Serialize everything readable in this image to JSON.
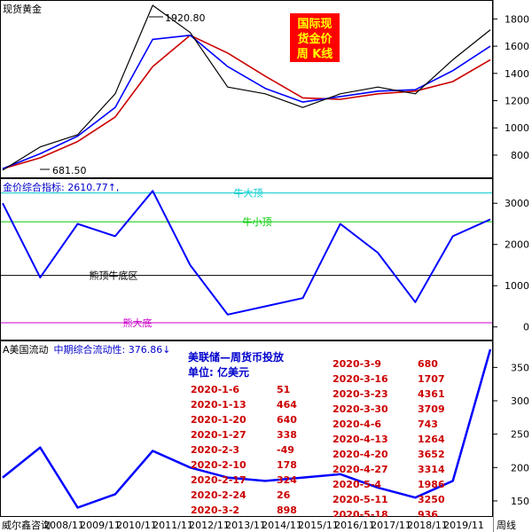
{
  "panels": {
    "top_title": "现货黄金",
    "mid_title_prefix": "金价综合指标: ",
    "mid_value": "2610.77↑,",
    "bot_title_prefix": "A美国流动",
    "bot_sub_label": "中期综合流动性: ",
    "bot_value": "376.86↓"
  },
  "colors": {
    "price": "#000000",
    "ma_blue": "#0000ff",
    "ma_red": "#cc0000",
    "indicator": "#0000ff",
    "level_cyan": "#00cccc",
    "level_green": "#00cc00",
    "level_black": "#000000",
    "level_magenta": "#cc00cc",
    "liquidity": "#0000ff",
    "badge_bg": "#ff0000",
    "badge_text": "#ffff00"
  },
  "badge_lines": [
    "国际现",
    "货金价",
    "周 K线"
  ],
  "annotations": {
    "high": "1920.80",
    "low": "681.50"
  },
  "footer": {
    "source": "威尔鑫咨询",
    "suffix": "周线"
  },
  "table": {
    "title": "美联储—周货币投放",
    "unit": "单位: 亿美元",
    "left": [
      {
        "date": "2020-1-6",
        "value": "51"
      },
      {
        "date": "2020-1-13",
        "value": "464"
      },
      {
        "date": "2020-1-20",
        "value": "640"
      },
      {
        "date": "2020-1-27",
        "value": "338"
      },
      {
        "date": "2020-2-3",
        "value": "-49"
      },
      {
        "date": "2020-2-10",
        "value": "178"
      },
      {
        "date": "2020-2-17",
        "value": "324"
      },
      {
        "date": "2020-2-24",
        "value": "26"
      },
      {
        "date": "2020-3-2",
        "value": "898"
      }
    ],
    "right": [
      {
        "date": "2020-3-9",
        "value": "680"
      },
      {
        "date": "2020-3-16",
        "value": "1707"
      },
      {
        "date": "2020-3-23",
        "value": "4361"
      },
      {
        "date": "2020-3-30",
        "value": "3709"
      },
      {
        "date": "2020-4-6",
        "value": "743"
      },
      {
        "date": "2020-4-13",
        "value": "1264"
      },
      {
        "date": "2020-4-20",
        "value": "3652"
      },
      {
        "date": "2020-4-27",
        "value": "3314"
      },
      {
        "date": "2020-5-4",
        "value": "1986"
      },
      {
        "date": "2020-5-11",
        "value": "3250"
      },
      {
        "date": "2020-5-18",
        "value": "936"
      }
    ]
  },
  "chart_data": [
    {
      "type": "line",
      "title": "现货黄金",
      "x": [
        "2007",
        "2008",
        "2009",
        "2010",
        "2011",
        "2012",
        "2013",
        "2014",
        "2015",
        "2016",
        "2017",
        "2018",
        "2019",
        "2020"
      ],
      "ylim": [
        650,
        1900
      ],
      "yticks": [
        800,
        1000,
        1200,
        1400,
        1600,
        1800
      ],
      "series": [
        {
          "values": [
            690,
            860,
            950,
            1250,
            1900,
            1700,
            1300,
            1250,
            1150,
            1250,
            1300,
            1250,
            1500,
            1720
          ]
        },
        {
          "values": [
            700,
            810,
            940,
            1150,
            1650,
            1680,
            1450,
            1290,
            1190,
            1230,
            1270,
            1280,
            1420,
            1600
          ]
        },
        {
          "values": [
            700,
            780,
            900,
            1080,
            1450,
            1680,
            1550,
            1380,
            1220,
            1210,
            1250,
            1270,
            1340,
            1500
          ]
        }
      ]
    },
    {
      "type": "line",
      "title": "金价综合指标",
      "x": [
        "2007",
        "2008",
        "2009",
        "2010",
        "2011",
        "2012",
        "2013",
        "2014",
        "2015",
        "2016",
        "2017",
        "2018",
        "2019",
        "2020"
      ],
      "ylim": [
        -200,
        3500
      ],
      "yticks": [
        0,
        1000,
        2000,
        3000
      ],
      "levels": [
        {
          "name": "牛大顶",
          "value": 3250
        },
        {
          "name": "牛小顶",
          "value": 2550
        },
        {
          "name": "熊顶牛底区",
          "value": 1250
        },
        {
          "name": "熊大底",
          "value": 100
        }
      ],
      "series": [
        {
          "values": [
            3000,
            1200,
            2500,
            2200,
            3300,
            1500,
            300,
            500,
            700,
            2500,
            1800,
            600,
            2200,
            2610
          ]
        }
      ]
    },
    {
      "type": "line",
      "title": "中期综合流动性",
      "x": [
        "2007",
        "2008",
        "2009",
        "2010",
        "2011",
        "2012",
        "2013",
        "2014",
        "2015",
        "2016",
        "2017",
        "2018",
        "2019",
        "2020"
      ],
      "xticks": [
        "2008/11",
        "2009/11",
        "2010/11",
        "2011/11",
        "2012/11",
        "2013/11",
        "2014/11",
        "2015/11",
        "2016/11",
        "2017/11",
        "2018/11",
        "2019/11"
      ],
      "ylim": [
        130,
        385
      ],
      "yticks": [
        150,
        200,
        250,
        300,
        350
      ],
      "series": [
        {
          "values": [
            185,
            230,
            140,
            160,
            225,
            200,
            185,
            180,
            185,
            190,
            170,
            155,
            180,
            377
          ]
        }
      ]
    }
  ]
}
